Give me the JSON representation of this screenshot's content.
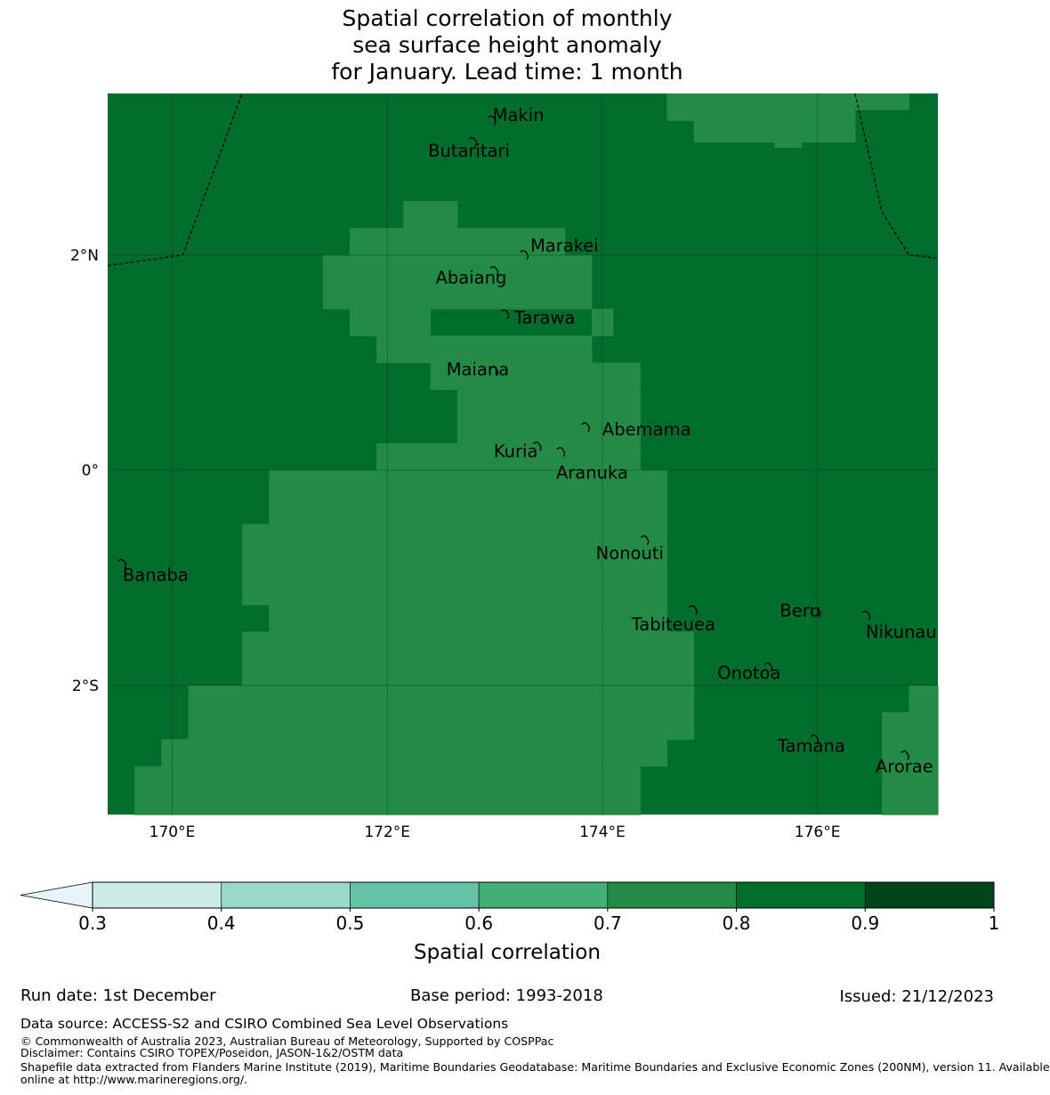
{
  "title": {
    "line1": "Spatial correlation of monthly",
    "line2": "sea surface height anomaly",
    "line3": "for January. Lead time: 1 month"
  },
  "colors": {
    "c0": "#e5f5f9",
    "c1": "#ccece6",
    "c2": "#99d8c9",
    "c3": "#66c2a4",
    "c4": "#41ae76",
    "c5": "#238b45",
    "c6": "#006d2c",
    "c7": "#00441b"
  },
  "map": {
    "lon_range": [
      169.4,
      177.12
    ],
    "lat_range": [
      -3.2,
      3.5
    ],
    "x_ticks": [
      {
        "value": 170,
        "label": "170°E"
      },
      {
        "value": 172,
        "label": "172°E"
      },
      {
        "value": 174,
        "label": "174°E"
      },
      {
        "value": 176,
        "label": "176°E"
      }
    ],
    "y_ticks": [
      {
        "value": 2,
        "label": "2°N"
      },
      {
        "value": 0,
        "label": "0°"
      },
      {
        "value": -2,
        "label": "2°S"
      }
    ],
    "background_class": "0.8-0.9",
    "cells_0.7_0.8": [
      [
        174.6,
        174.85,
        3.5,
        3.25
      ],
      [
        174.85,
        175.6,
        3.5,
        3.05
      ],
      [
        175.6,
        175.85,
        3.5,
        3.0
      ],
      [
        175.85,
        176.35,
        3.5,
        3.05
      ],
      [
        176.35,
        176.85,
        3.5,
        3.35
      ],
      [
        172.15,
        172.65,
        2.5,
        2.25
      ],
      [
        171.65,
        173.65,
        2.25,
        2.0
      ],
      [
        171.4,
        173.9,
        2.0,
        1.5
      ],
      [
        173.9,
        174.1,
        1.5,
        1.25
      ],
      [
        171.65,
        172.4,
        1.5,
        1.25
      ],
      [
        171.9,
        173.9,
        1.25,
        1.0
      ],
      [
        172.4,
        174.35,
        1.0,
        0.75
      ],
      [
        172.65,
        174.35,
        0.75,
        0.25
      ],
      [
        171.9,
        174.35,
        0.25,
        0.0
      ],
      [
        170.9,
        174.6,
        0.0,
        -0.5
      ],
      [
        170.65,
        174.6,
        -0.5,
        -1.25
      ],
      [
        170.9,
        174.6,
        -1.25,
        -1.5
      ],
      [
        170.65,
        174.85,
        -1.5,
        -2.0
      ],
      [
        170.15,
        174.85,
        -2.0,
        -2.5
      ],
      [
        169.9,
        174.6,
        -2.5,
        -2.75
      ],
      [
        169.65,
        174.35,
        -2.75,
        -3.2
      ],
      [
        176.85,
        177.12,
        -2.0,
        -2.25
      ],
      [
        176.6,
        177.12,
        -2.25,
        -3.2
      ]
    ],
    "eez_boundaries": [
      {
        "name": "west",
        "points": [
          [
            169.4,
            1.9
          ],
          [
            170.1,
            2.0
          ],
          [
            170.65,
            3.5
          ]
        ]
      },
      {
        "name": "east",
        "points": [
          [
            176.35,
            3.5
          ],
          [
            176.6,
            2.4
          ],
          [
            176.85,
            2.0
          ],
          [
            177.12,
            1.97
          ]
        ]
      }
    ],
    "islands": [
      {
        "name": "Makin",
        "lon": 172.98,
        "lat": 3.25,
        "label_lon": 172.98,
        "label_lat": 3.3
      },
      {
        "name": "Butaritari",
        "lon": 172.8,
        "lat": 3.05,
        "label_lon": 172.38,
        "label_lat": 2.97
      },
      {
        "name": "Marakei",
        "lon": 173.28,
        "lat": 2.0,
        "label_lon": 173.33,
        "label_lat": 2.09
      },
      {
        "name": "Abaiang",
        "lon": 173.0,
        "lat": 1.85,
        "label_lon": 172.45,
        "label_lat": 1.79
      },
      {
        "name": "Tarawa",
        "lon": 173.1,
        "lat": 1.45,
        "label_lon": 173.18,
        "label_lat": 1.42
      },
      {
        "name": "Maiana",
        "lon": 173.0,
        "lat": 0.92,
        "label_lon": 172.55,
        "label_lat": 0.94
      },
      {
        "name": "Abemama",
        "lon": 173.85,
        "lat": 0.4,
        "label_lon": 174.0,
        "label_lat": 0.38
      },
      {
        "name": "Kuria",
        "lon": 173.4,
        "lat": 0.22,
        "label_lon": 172.99,
        "label_lat": 0.18
      },
      {
        "name": "Aranuka",
        "lon": 173.62,
        "lat": 0.17,
        "label_lon": 173.57,
        "label_lat": -0.02
      },
      {
        "name": "Nonouti",
        "lon": 174.4,
        "lat": -0.65,
        "label_lon": 173.94,
        "label_lat": -0.77
      },
      {
        "name": "Banaba",
        "lon": 169.54,
        "lat": -0.87,
        "label_lon": 169.54,
        "label_lat": -0.97
      },
      {
        "name": "Tabiteuea",
        "lon": 174.85,
        "lat": -1.3,
        "label_lon": 174.27,
        "label_lat": -1.43
      },
      {
        "name": "Beru",
        "lon": 176.0,
        "lat": -1.32,
        "label_lon": 175.65,
        "label_lat": -1.3
      },
      {
        "name": "Nikunau",
        "lon": 176.46,
        "lat": -1.35,
        "label_lon": 176.45,
        "label_lat": -1.5
      },
      {
        "name": "Onotoa",
        "lon": 175.55,
        "lat": -1.83,
        "label_lon": 175.07,
        "label_lat": -1.88
      },
      {
        "name": "Tamana",
        "lon": 175.98,
        "lat": -2.5,
        "label_lon": 175.63,
        "label_lat": -2.56
      },
      {
        "name": "Arorae",
        "lon": 176.82,
        "lat": -2.65,
        "label_lon": 176.54,
        "label_lat": -2.75
      }
    ]
  },
  "colorbar": {
    "ticks": [
      "0.3",
      "0.4",
      "0.5",
      "0.6",
      "0.7",
      "0.8",
      "0.9",
      "1"
    ],
    "label": "Spatial correlation"
  },
  "footer": {
    "run_date": "Run date: 1st December",
    "base_period": "Base period: 1993-2018",
    "issued": "Issued: 21/12/2023",
    "data_source": "Data source: ACCESS-S2 and CSIRO Combined Sea Level Observations",
    "copyright": "© Commonwealth of Australia 2023, Australian Bureau of Meteorology, Supported by COSPPac",
    "disclaimer": "Disclaimer: Contains CSIRO TOPEX/Poseidon, JASON-1&2/OSTM data",
    "shapefile_1": "Shapefile data extracted from Flanders Marine Institute (2019), Maritime Boundaries Geodatabase: Maritime Boundaries and Exclusive Economic Zones (200NM), version 11. Available",
    "shapefile_2": "online at http://www.marineregions.org/."
  }
}
